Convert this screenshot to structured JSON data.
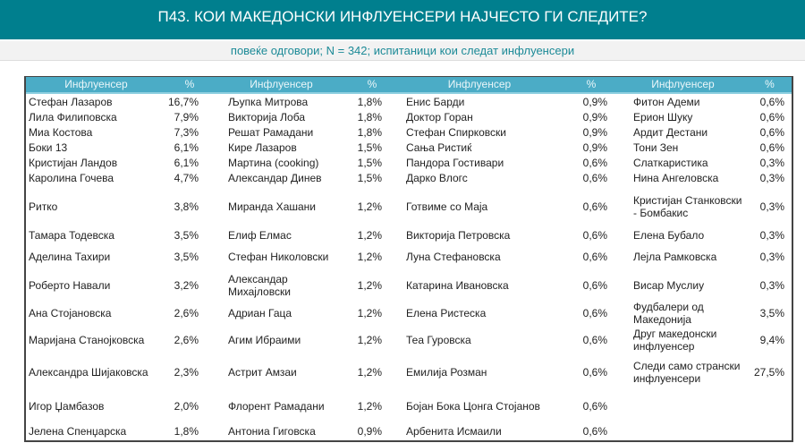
{
  "header": {
    "title": "П43. КОИ МАКЕДОНСКИ ИНФЛУЕНСЕРИ НАЈЧЕСТО ГИ СЛЕДИТЕ?",
    "subtitle": "повеќе одговори; N = 342; испитаници кои следат инфлуенсери"
  },
  "table": {
    "columns": [
      "Инфлуенсер",
      "%",
      "Инфлуенсер",
      "%",
      "Инфлуенсер",
      "%",
      "Инфлуенсер",
      "%"
    ],
    "rows": [
      [
        "Стефан Лазаров",
        "16,7%",
        "Љупка Митрова",
        "1,8%",
        "Енис Барди",
        "0,9%",
        "Фитон Адеми",
        "0,6%"
      ],
      [
        "Лила Филиповска",
        "7,9%",
        "Викторија Лоба",
        "1,8%",
        "Доктор Горан",
        "0,9%",
        "Ерион Шуку",
        "0,6%"
      ],
      [
        "Миа Костова",
        "7,3%",
        "Решат Рамадани",
        "1,8%",
        "Стефан Спирковски",
        "0,9%",
        "Ардит Дестани",
        "0,6%"
      ],
      [
        "Боки 13",
        "6,1%",
        "Кире Лазаров",
        "1,5%",
        "Сања Ристиќ",
        "0,9%",
        "Тони Зен",
        "0,6%"
      ],
      [
        "Кристијан Ландов",
        "6,1%",
        "Мартина (cooking)",
        "1,5%",
        "Пандора Гостивари",
        "0,6%",
        "Слаткаристика",
        "0,3%"
      ],
      [
        "Каролина Гочева",
        "4,7%",
        "Александар Динев",
        "1,5%",
        "Дарко Влогс",
        "0,6%",
        "Нина Ангеловска",
        "0,3%"
      ],
      [
        "Ритко",
        "3,8%",
        "Миранда Хашани",
        "1,2%",
        "Готвиме со Маја",
        "0,6%",
        "Кристијан Станковски - Бомбакис",
        "0,3%"
      ],
      [
        "Тамара Тодевска",
        "3,5%",
        "Елиф Елмас",
        "1,2%",
        "Викторија Петровска",
        "0,6%",
        "Елена Бубало",
        "0,3%"
      ],
      [
        "Аделина Тахири",
        "3,5%",
        "Стефан Николовски",
        "1,2%",
        "Луна Стефановска",
        "0,6%",
        "Лејла Рамковска",
        "0,3%"
      ],
      [
        "Роберто Навали",
        "3,2%",
        "Александар Михајловски",
        "1,2%",
        "Катарина Ивановска",
        "0,6%",
        "Висар Муслиу",
        "0,3%"
      ],
      [
        "Ана Стојановска",
        "2,6%",
        "Адриан Гаца",
        "1,2%",
        "Елена Ристеска",
        "0,6%",
        "Фудбалери од Македонија",
        "3,5%"
      ],
      [
        "Маријана Станојковска",
        "2,6%",
        "Агим Ибраими",
        "1,2%",
        "Теа Гуровска",
        "0,6%",
        "Друг македонски инфлуенсер",
        "9,4%"
      ],
      [
        "Александра Шијаковска",
        "2,3%",
        "Астрит Амзаи",
        "1,2%",
        "Емилија Розман",
        "0,6%",
        "Следи само странски инфлуенсери",
        "27,5%"
      ],
      [
        "Игор Џамбазов",
        "2,0%",
        "Флорент Рамадани",
        "1,2%",
        "Бојан Бока Цонга Стојанов",
        "0,6%",
        "",
        ""
      ],
      [
        "Јелена Спенџарска",
        "1,8%",
        "Антониа Гиговска",
        "0,9%",
        "Арбенита Исмаили",
        "0,6%",
        "",
        ""
      ]
    ]
  }
}
